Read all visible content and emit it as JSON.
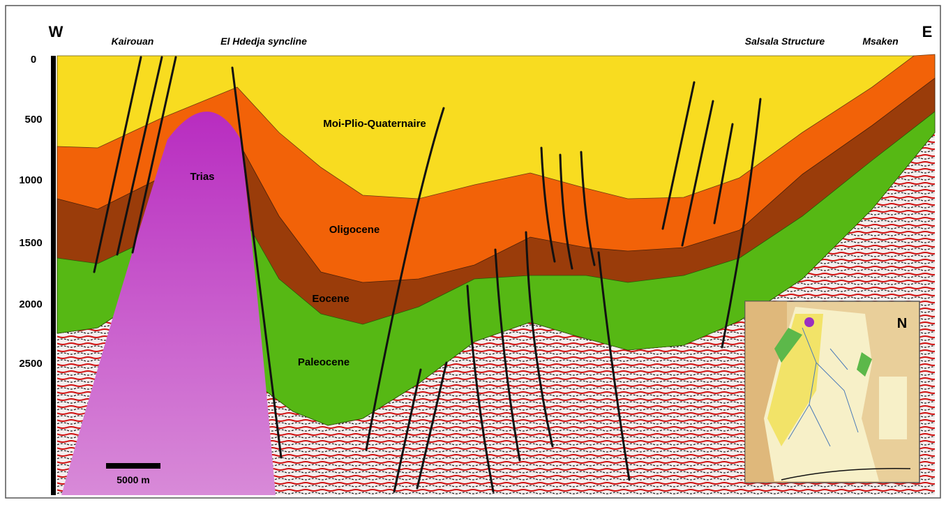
{
  "header": {
    "west": "W",
    "east": "E"
  },
  "locations": [
    "Kairouan",
    "El Hdedja syncline",
    "Salsala Structure",
    "Msaken"
  ],
  "depth_axis": {
    "labels": [
      0,
      500,
      1000,
      1500,
      2000,
      2500
    ]
  },
  "layers": [
    "Moi-Plio-Quaternaire",
    "Oligocene",
    "Eocene",
    "Paleocene",
    "Trias"
  ],
  "scale_bar": "5000 m",
  "inset": {
    "north": "N"
  }
}
